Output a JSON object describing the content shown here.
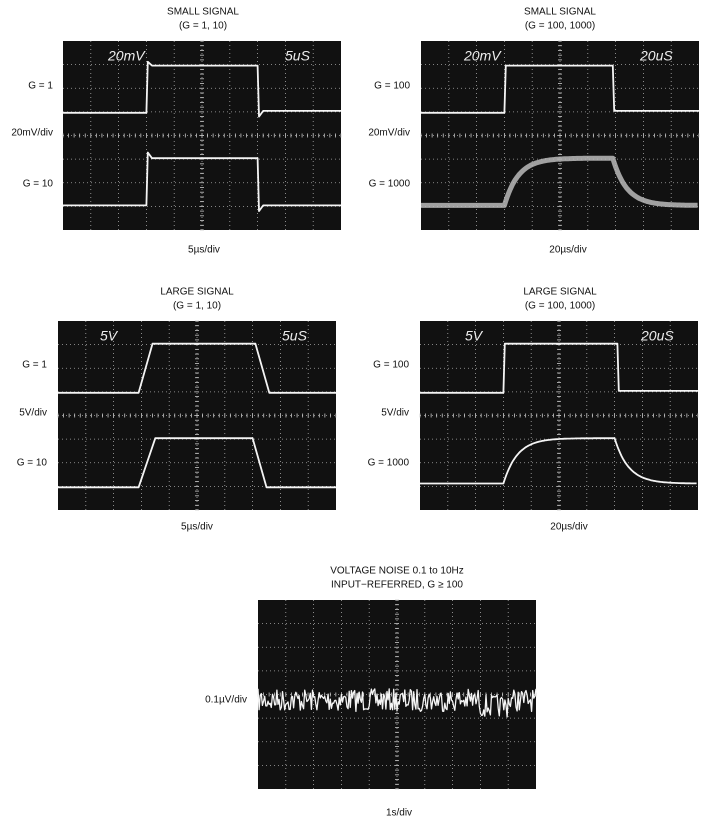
{
  "panels": [
    {
      "title": [
        "SMALL SIGNAL",
        "(G = 1, 10)"
      ],
      "labels": [
        "G = 1",
        "20mV/div",
        "G = 10"
      ],
      "scope_text": [
        "20mV",
        "5uS"
      ],
      "x_label": "5µs/div"
    },
    {
      "title": [
        "SMALL SIGNAL",
        "(G = 100, 1000)"
      ],
      "labels": [
        "G = 100",
        "20mV/div",
        "G = 1000"
      ],
      "scope_text": [
        "20mV",
        "20uS"
      ],
      "x_label": "20µs/div"
    },
    {
      "title": [
        "LARGE SIGNAL",
        "(G = 1, 10)"
      ],
      "labels": [
        "G = 1",
        "5V/div",
        "G = 10"
      ],
      "scope_text": [
        "5V",
        "5uS"
      ],
      "x_label": "5µs/div"
    },
    {
      "title": [
        "LARGE SIGNAL",
        "(G = 100, 1000)"
      ],
      "labels": [
        "G = 100",
        "5V/div",
        "G = 1000"
      ],
      "scope_text": [
        "5V",
        "20uS"
      ],
      "x_label": "20µs/div"
    },
    {
      "title": [
        "VOLTAGE NOISE 0.1 to 10Hz",
        "INPUT−REFERRED, G ≥ 100"
      ],
      "labels": [
        "0.1µV/div"
      ],
      "x_label": "1s/div"
    }
  ]
}
